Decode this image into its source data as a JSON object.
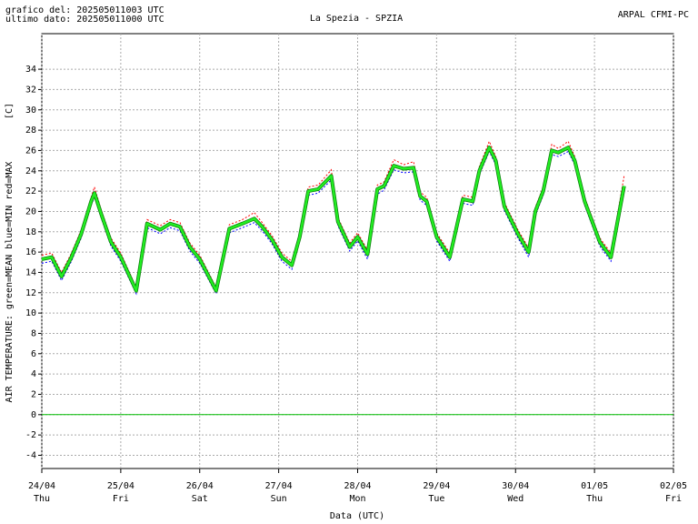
{
  "header": {
    "generated": "grafico del: 202505011003 UTC",
    "last_data": "ultimo dato: 202505011000 UTC",
    "source": "ARPAL CFMI-PC"
  },
  "chart_data": {
    "type": "line",
    "title": "La Spezia - SPZIA",
    "y_unit_label": "[C]",
    "ylabel": "AIR TEMPERATURE: green=MEAN  blue=MIN  red=MAX",
    "xlabel": "Data (UTC)",
    "x": [
      0,
      3,
      6,
      9,
      12,
      15,
      16,
      18,
      21,
      24,
      28.7,
      32,
      36,
      39,
      42,
      45,
      48,
      53,
      57,
      61,
      64.6,
      67,
      70,
      73,
      76,
      78.4,
      81,
      84,
      88,
      90,
      93.6,
      96,
      99,
      102,
      104,
      107,
      110,
      113,
      115,
      117,
      120,
      124,
      128,
      131,
      133,
      136,
      138,
      140.6,
      144.7,
      148,
      150,
      152.4,
      155,
      157,
      160,
      162,
      165,
      169.6,
      173,
      177
    ],
    "series": [
      {
        "name": "MIN",
        "color": "#0000ff",
        "style": "dotted",
        "values": [
          14.9,
          15.1,
          13.2,
          15.1,
          17.4,
          20.6,
          21.4,
          19.4,
          16.6,
          15.1,
          11.9,
          18.4,
          17.8,
          18.4,
          18.1,
          16.1,
          14.9,
          11.9,
          17.9,
          18.4,
          18.9,
          18.1,
          16.8,
          15.1,
          14.3,
          17.1,
          21.6,
          21.8,
          23.1,
          18.6,
          16.1,
          17.1,
          15.3,
          21.7,
          22.1,
          24.1,
          23.8,
          23.9,
          21.1,
          20.6,
          17.1,
          15.1,
          20.8,
          20.6,
          23.6,
          25.9,
          24.6,
          20.1,
          17.4,
          15.5,
          19.6,
          21.6,
          25.6,
          25.4,
          25.9,
          24.6,
          20.6,
          16.6,
          15.1,
          22.0
        ]
      },
      {
        "name": "MAX",
        "color": "#ff0000",
        "style": "dotted",
        "values": [
          15.7,
          15.9,
          14.0,
          15.9,
          18.2,
          21.4,
          22.4,
          20.2,
          17.4,
          15.9,
          12.5,
          19.2,
          18.6,
          19.2,
          18.9,
          16.9,
          15.7,
          12.5,
          18.7,
          19.2,
          19.9,
          18.9,
          17.6,
          15.9,
          15.1,
          17.9,
          22.4,
          22.6,
          24.1,
          19.4,
          16.9,
          17.9,
          16.2,
          22.6,
          22.9,
          25.1,
          24.6,
          24.9,
          21.9,
          21.4,
          17.9,
          15.9,
          21.6,
          21.4,
          24.4,
          26.9,
          25.4,
          20.9,
          18.2,
          16.4,
          20.4,
          22.4,
          26.6,
          26.2,
          26.9,
          25.4,
          21.4,
          17.4,
          15.9,
          23.5
        ]
      },
      {
        "name": "MEAN",
        "color": "#22ee22",
        "style": "solid",
        "values": [
          15.3,
          15.5,
          13.6,
          15.5,
          17.8,
          21.0,
          21.8,
          19.8,
          17.0,
          15.5,
          12.2,
          18.8,
          18.2,
          18.8,
          18.5,
          16.5,
          15.3,
          12.2,
          18.3,
          18.8,
          19.3,
          18.5,
          17.2,
          15.5,
          14.7,
          17.5,
          22.0,
          22.2,
          23.5,
          19.0,
          16.5,
          17.5,
          15.8,
          22.2,
          22.5,
          24.5,
          24.2,
          24.3,
          21.5,
          21.0,
          17.5,
          15.5,
          21.2,
          21.0,
          24.0,
          26.3,
          25.0,
          20.5,
          17.8,
          16.0,
          20.0,
          22.0,
          26.0,
          25.8,
          26.3,
          25.0,
          21.0,
          17.0,
          15.5,
          22.5
        ]
      }
    ],
    "xlim": [
      0,
      192
    ],
    "xticks": [
      {
        "value": 0,
        "label": "24/04"
      },
      {
        "value": 24,
        "label": "25/04"
      },
      {
        "value": 48,
        "label": "26/04"
      },
      {
        "value": 72,
        "label": "27/04"
      },
      {
        "value": 96,
        "label": "28/04"
      },
      {
        "value": 120,
        "label": "29/04"
      },
      {
        "value": 144,
        "label": "30/04"
      },
      {
        "value": 168,
        "label": "01/05"
      },
      {
        "value": 192,
        "label": "02/05"
      }
    ],
    "x_weekdays": [
      "Thu",
      "Fri",
      "Sat",
      "Sun",
      "Mon",
      "Tue",
      "Wed",
      "Thu",
      "Fri"
    ],
    "ylim": [
      -5.3,
      37.5
    ],
    "yticks": [
      -4,
      -2,
      0,
      2,
      4,
      6,
      8,
      10,
      12,
      14,
      16,
      18,
      20,
      22,
      24,
      26,
      28,
      30,
      32,
      34
    ],
    "grid": true,
    "zero_line_color": "#00bb00"
  }
}
